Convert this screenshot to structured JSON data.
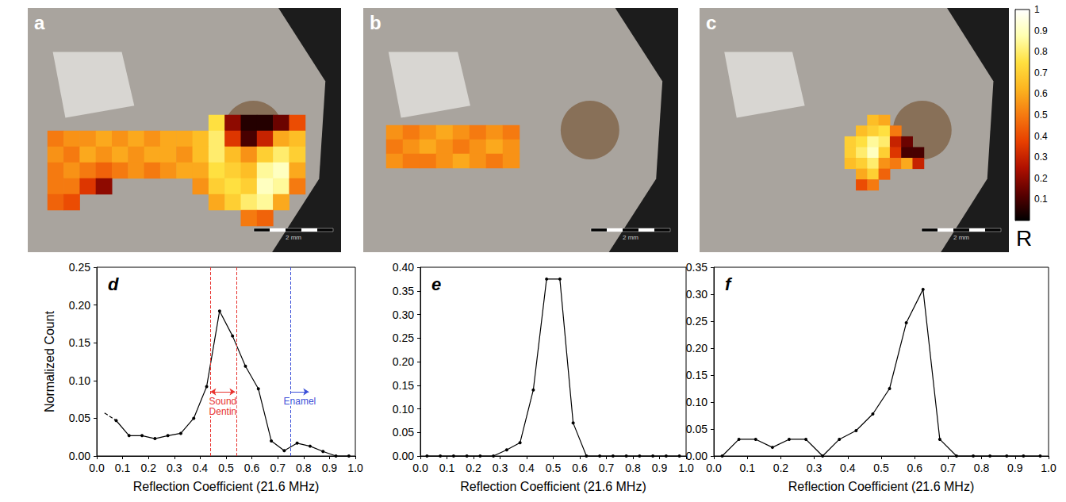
{
  "chart_data": [
    {
      "type": "heatmap",
      "label": "a",
      "scale_bar": "2 mm",
      "cells": [
        [
          null,
          null,
          null,
          null,
          null,
          null,
          null,
          null,
          null,
          null,
          0.75,
          0.2,
          0.05,
          0.05,
          0.15,
          0.4
        ],
        [
          0.5,
          0.55,
          0.55,
          0.6,
          0.55,
          0.6,
          0.55,
          0.6,
          0.6,
          0.65,
          0.8,
          0.35,
          0.1,
          0.3,
          0.6,
          0.65
        ],
        [
          0.55,
          0.5,
          0.6,
          0.55,
          0.6,
          0.55,
          0.6,
          0.6,
          0.55,
          0.65,
          0.8,
          0.65,
          0.55,
          0.7,
          0.8,
          0.7
        ],
        [
          0.5,
          0.55,
          0.5,
          0.45,
          0.5,
          0.55,
          0.5,
          0.55,
          0.6,
          0.6,
          0.75,
          0.7,
          0.65,
          0.85,
          0.9,
          0.6
        ],
        [
          0.5,
          0.5,
          0.35,
          0.2,
          null,
          null,
          null,
          null,
          null,
          0.55,
          0.7,
          0.75,
          0.7,
          0.9,
          0.85,
          0.5
        ],
        [
          0.45,
          0.4,
          null,
          null,
          null,
          null,
          null,
          null,
          null,
          null,
          0.6,
          0.7,
          0.8,
          0.85,
          0.6,
          null
        ],
        [
          null,
          null,
          null,
          null,
          null,
          null,
          null,
          null,
          null,
          null,
          null,
          null,
          0.5,
          0.45,
          null,
          null
        ]
      ]
    },
    {
      "type": "heatmap",
      "label": "b",
      "scale_bar": "2 mm",
      "cells": [
        [
          0.55,
          0.5,
          0.55,
          0.6,
          0.55,
          0.5,
          0.55,
          0.5
        ],
        [
          0.5,
          0.55,
          0.6,
          0.55,
          0.5,
          0.55,
          0.6,
          0.55
        ],
        [
          0.55,
          0.5,
          0.5,
          0.55,
          0.6,
          0.55,
          0.5,
          0.55
        ]
      ]
    },
    {
      "type": "heatmap",
      "label": "c",
      "scale_bar": "2 mm",
      "cells": [
        [
          null,
          null,
          0.65,
          0.6,
          null,
          null,
          null
        ],
        [
          null,
          0.65,
          0.7,
          0.75,
          0.5,
          null,
          null
        ],
        [
          0.7,
          0.75,
          0.85,
          0.8,
          0.3,
          0.15,
          null
        ],
        [
          0.7,
          0.8,
          0.9,
          0.7,
          0.35,
          0.1,
          0.1
        ],
        [
          0.65,
          0.7,
          0.8,
          0.55,
          0.5,
          0.6,
          0.3
        ],
        [
          null,
          0.6,
          0.7,
          0.45,
          null,
          null,
          null
        ],
        [
          null,
          0.4,
          0.5,
          null,
          null,
          null,
          null
        ]
      ]
    },
    {
      "type": "colorbar",
      "title": "R",
      "range": [
        0,
        1
      ],
      "ticks": [
        0.1,
        0.2,
        0.3,
        0.4,
        0.5,
        0.6,
        0.7,
        0.8,
        0.9,
        1
      ]
    },
    {
      "type": "line",
      "label": "d",
      "x_label": "Reflection Coefficient (21.6 MHz)",
      "y_label": "Normalized Count",
      "xlim": [
        0,
        1
      ],
      "xticks": [
        {
          "value": 0,
          "label": "0.0"
        },
        0.1,
        0.2,
        0.3,
        0.4,
        0.5,
        0.6,
        0.7,
        0.8,
        0.9,
        {
          "value": 1,
          "label": "1.0"
        }
      ],
      "ylim": [
        0,
        0.25
      ],
      "yticks": [
        {
          "value": 0,
          "label": "0.00"
        },
        0.05,
        {
          "value": 0.1,
          "label": "0.10"
        },
        0.15,
        {
          "value": 0.2,
          "label": "0.20"
        },
        0.25
      ],
      "grid": false,
      "series": [
        {
          "color": "#000000",
          "marker": "circle",
          "line_style": "solid",
          "x": [
            0.075,
            0.125,
            0.175,
            0.225,
            0.275,
            0.325,
            0.375,
            0.425,
            0.475,
            0.525,
            0.575,
            0.625,
            0.675,
            0.725,
            0.775,
            0.825,
            0.875,
            0.925,
            0.975
          ],
          "values": [
            0.047,
            0.027,
            0.027,
            0.023,
            0.027,
            0.03,
            0.05,
            0.092,
            0.192,
            0.159,
            0.119,
            0.089,
            0.02,
            0.007,
            0.017,
            0.013,
            0.006,
            0,
            0
          ]
        },
        {
          "color": "#000000",
          "marker": "none",
          "line_style": "dashed",
          "x": [
            0.03,
            0.075
          ],
          "values": [
            0.057,
            0.047
          ]
        }
      ],
      "vlines": [
        {
          "x": 0.44,
          "color": "#e8332f"
        },
        {
          "x": 0.535,
          "color": "#e8332f"
        },
        {
          "x": 0.75,
          "color": "#3b4fd8"
        }
      ],
      "annotations": [
        {
          "text": "Sound Dentin",
          "x_start": 0.44,
          "x_end": 0.535,
          "y": 0.085,
          "color": "#e8332f",
          "marker": "double_arrow"
        },
        {
          "text": "Enamel",
          "x_start": 0.75,
          "x_end": 0.82,
          "y": 0.085,
          "color": "#3b4fd8",
          "marker": "arrow"
        }
      ]
    },
    {
      "type": "line",
      "label": "e",
      "x_label": "Reflection Coefficient (21.6 MHz)",
      "xlim": [
        0,
        1
      ],
      "xticks": [
        {
          "value": 0,
          "label": "0.0"
        },
        0.1,
        0.2,
        0.3,
        0.4,
        0.5,
        0.6,
        0.7,
        0.8,
        0.9,
        {
          "value": 1,
          "label": "1.0"
        }
      ],
      "ylim": [
        0,
        0.4
      ],
      "yticks": [
        {
          "value": 0,
          "label": "0.00"
        },
        0.05,
        {
          "value": 0.1,
          "label": "0.10"
        },
        0.15,
        {
          "value": 0.2,
          "label": "0.20"
        },
        0.25,
        {
          "value": 0.3,
          "label": "0.30"
        },
        0.35,
        {
          "value": 0.4,
          "label": "0.40"
        }
      ],
      "grid": false,
      "series": [
        {
          "color": "#000000",
          "marker": "circle",
          "line_style": "solid",
          "x": [
            0.025,
            0.075,
            0.125,
            0.175,
            0.225,
            0.275,
            0.325,
            0.375,
            0.425,
            0.475,
            0.525,
            0.575,
            0.625,
            0.675,
            0.725,
            0.775,
            0.825,
            0.875,
            0.925,
            0.975
          ],
          "values": [
            0,
            0,
            0,
            0,
            0,
            0,
            0.013,
            0.028,
            0.14,
            0.375,
            0.375,
            0.07,
            0,
            0,
            0,
            0,
            0,
            0,
            0,
            0
          ]
        }
      ]
    },
    {
      "type": "line",
      "label": "f",
      "x_label": "Reflection Coefficient (21.6 MHz)",
      "xlim": [
        0,
        1
      ],
      "xticks": [
        {
          "value": 0,
          "label": "0.0"
        },
        0.1,
        0.2,
        0.3,
        0.4,
        0.5,
        0.6,
        0.7,
        0.8,
        0.9,
        {
          "value": 1,
          "label": "1.0"
        }
      ],
      "ylim": [
        0,
        0.35
      ],
      "yticks": [
        {
          "value": 0,
          "label": "0.00"
        },
        0.05,
        {
          "value": 0.1,
          "label": "0.10"
        },
        0.15,
        {
          "value": 0.2,
          "label": "0.20"
        },
        0.25,
        {
          "value": 0.3,
          "label": "0.30"
        },
        0.35
      ],
      "grid": false,
      "series": [
        {
          "color": "#000000",
          "marker": "circle",
          "line_style": "solid",
          "x": [
            0.025,
            0.075,
            0.125,
            0.175,
            0.225,
            0.275,
            0.325,
            0.375,
            0.425,
            0.475,
            0.525,
            0.575,
            0.625,
            0.675,
            0.725,
            0.775,
            0.825,
            0.875,
            0.925,
            0.975
          ],
          "values": [
            0,
            0.031,
            0.031,
            0.016,
            0.031,
            0.031,
            0,
            0.031,
            0.047,
            0.078,
            0.125,
            0.247,
            0.309,
            0.031,
            0,
            0,
            0,
            0,
            0,
            0
          ]
        }
      ]
    }
  ]
}
